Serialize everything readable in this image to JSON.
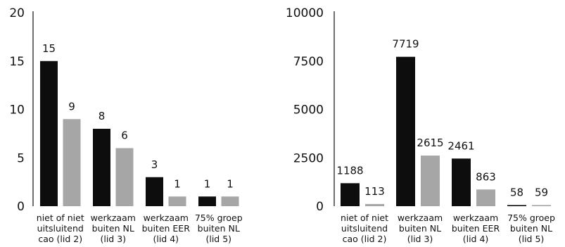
{
  "chart_data": [
    {
      "type": "bar",
      "categories": [
        [
          "niet of niet",
          "uitsluitend",
          "cao (lid 2)"
        ],
        [
          "werkzaam",
          "buiten NL",
          "(lid 3)"
        ],
        [
          "werkzaam",
          "buiten EER",
          "(lid 4)"
        ],
        [
          "75% groep",
          "buiten NL",
          "(lid 5)"
        ]
      ],
      "series": [
        {
          "values": [
            15,
            8,
            3,
            1
          ],
          "color": "#0d0d0d"
        },
        {
          "values": [
            9,
            6,
            1,
            1
          ],
          "color": "#a6a6a6"
        }
      ],
      "yticks": [
        "0",
        "5",
        "10",
        "15",
        "20"
      ],
      "ylim": [
        0,
        20
      ],
      "grid": false
    },
    {
      "type": "bar",
      "categories": [
        [
          "niet of niet",
          "uitsluitend",
          "cao (lid 2)"
        ],
        [
          "werkzaam",
          "buiten NL",
          "(lid 3)"
        ],
        [
          "werkzaam",
          "buiten EER",
          "(lid 4)"
        ],
        [
          "75% groep",
          "buiten NL",
          "(lid 5)"
        ]
      ],
      "series": [
        {
          "values": [
            1188,
            7719,
            2461,
            58
          ],
          "color": "#0d0d0d"
        },
        {
          "values": [
            113,
            2615,
            863,
            59
          ],
          "color": "#a6a6a6"
        }
      ],
      "yticks": [
        "0",
        "2500",
        "5000",
        "7500",
        "10000"
      ],
      "ylim": [
        0,
        10000
      ],
      "grid": false
    }
  ]
}
